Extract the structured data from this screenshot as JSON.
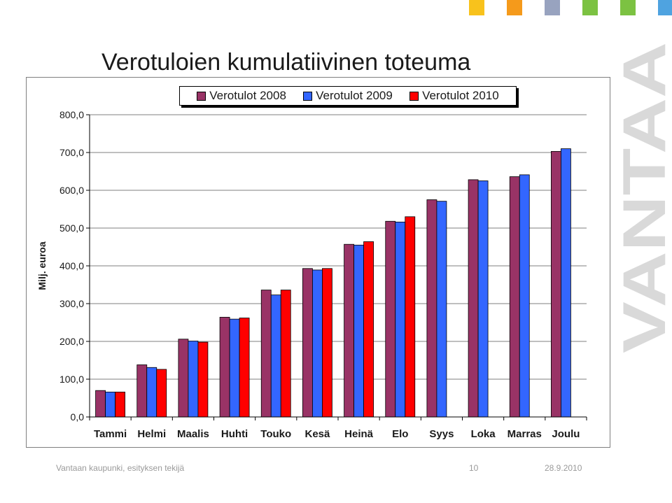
{
  "slide": {
    "title": "Verotuloien kumulatiivinen toteuma",
    "footer_text": "Vantaan kaupunki, esityksen tekijä",
    "page_number": "10",
    "date": "28.9.2010",
    "brand_watermark": "VANTAA",
    "decorative_squares": [
      "#f8c21c",
      "#f59a1b",
      "#98a3bf",
      "#7cc242",
      "#7cc242",
      "#4fa3e0"
    ]
  },
  "chart_data": {
    "type": "bar",
    "ylabel": "Milj. euroa",
    "ylim": [
      0,
      800
    ],
    "yticks": [
      "0,0",
      "100,0",
      "200,0",
      "300,0",
      "400,0",
      "500,0",
      "600,0",
      "700,0",
      "800,0"
    ],
    "grid": true,
    "legend": "top",
    "categories": [
      "Tammi",
      "Helmi",
      "Maalis",
      "Huhti",
      "Touko",
      "Kesä",
      "Heinä",
      "Elo",
      "Syys",
      "Loka",
      "Marras",
      "Joulu"
    ],
    "series": [
      {
        "name": "Verotulot 2008",
        "color": "#993366",
        "values": [
          70,
          138,
          206,
          264,
          336,
          393,
          457,
          518,
          575,
          628,
          636,
          703
        ]
      },
      {
        "name": "Verotulot 2009",
        "color": "#3366ff",
        "values": [
          66,
          131,
          201,
          259,
          323,
          389,
          455,
          516,
          571,
          625,
          641,
          710
        ]
      },
      {
        "name": "Verotulot 2010",
        "color": "#ff0000",
        "values": [
          66,
          126,
          198,
          262,
          336,
          393,
          464,
          530,
          null,
          null,
          null,
          null
        ]
      }
    ]
  }
}
